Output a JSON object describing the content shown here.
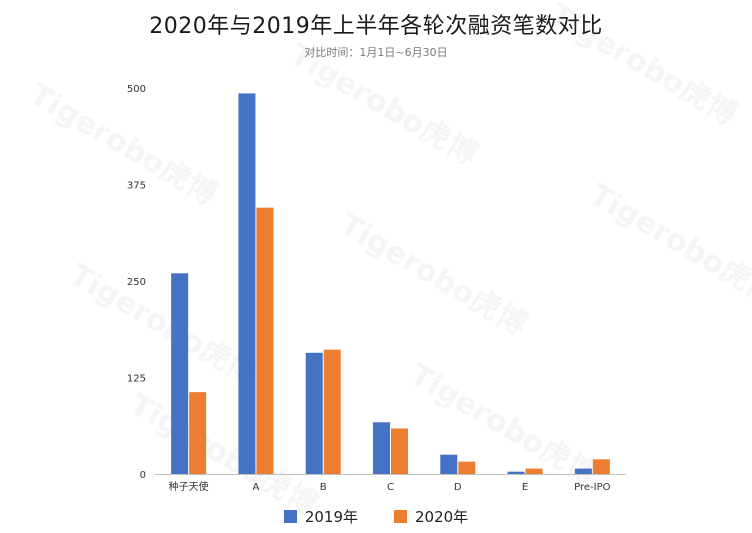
{
  "title": "2020年与2019年上半年各轮次融资笔数对比",
  "subtitle": "对比时间：1月1日~6月30日",
  "watermark_text": "Tigerobo虎博",
  "colors": {
    "s2019": "#4472C4",
    "s2020": "#ED7D31"
  },
  "chart_data": {
    "type": "bar",
    "title": "2020年与2019年上半年各轮次融资笔数对比",
    "subtitle": "对比时间：1月1日~6月30日",
    "categories": [
      "种子天使",
      "A",
      "B",
      "C",
      "D",
      "E",
      "Pre-IPO"
    ],
    "series": [
      {
        "name": "2019年",
        "values": [
          260,
          493,
          157,
          67,
          25,
          3,
          7
        ]
      },
      {
        "name": "2020年",
        "values": [
          106,
          345,
          161,
          59,
          16,
          7,
          19
        ]
      }
    ],
    "ylim": [
      0,
      500
    ],
    "yticks": [
      0,
      125,
      250,
      375,
      500
    ],
    "grid": false,
    "legend": "bottom-center"
  }
}
